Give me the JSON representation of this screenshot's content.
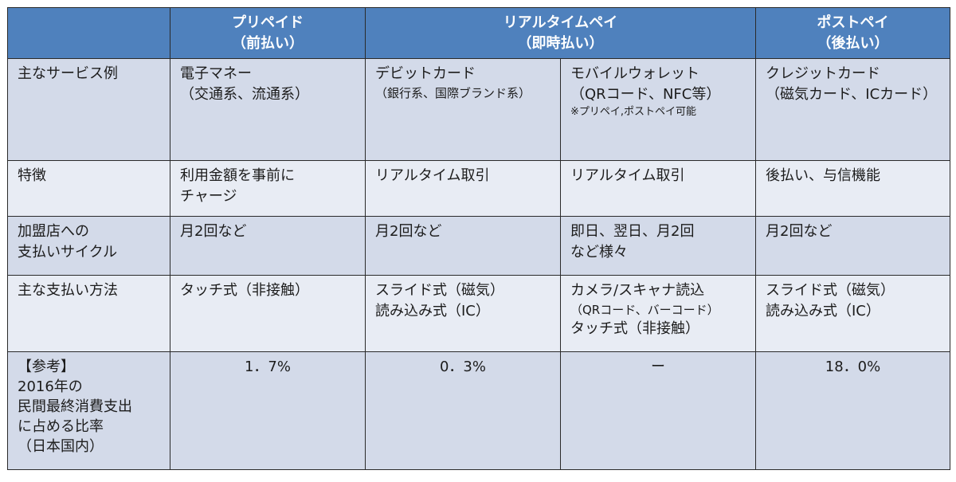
{
  "header": {
    "prepaid": {
      "title": "プリペイド",
      "sub": "（前払い）"
    },
    "realtime": {
      "title": "リアルタイムペイ",
      "sub": "（即時払い）"
    },
    "postpay": {
      "title": "ポストペイ",
      "sub": "（後払い）"
    }
  },
  "rows": {
    "service": {
      "label": "主なサービス例",
      "prepaid": [
        "電子マネー",
        "（交通系、流通系）"
      ],
      "debit": [
        "デビットカード",
        "（銀行系、国際ブランド系）"
      ],
      "mobile": [
        "モバイルウォレット",
        "（QRコード、NFC等）",
        "※プリペイ,ポストペイ可能"
      ],
      "credit": [
        "クレジットカード",
        "（磁気カード、ICカード）"
      ]
    },
    "feature": {
      "label": "特徴",
      "prepaid": [
        "利用金額を事前に",
        "チャージ"
      ],
      "debit": "リアルタイム取引",
      "mobile": "リアルタイム取引",
      "credit": "後払い、与信機能"
    },
    "cycle": {
      "label": [
        "加盟店への",
        "支払いサイクル"
      ],
      "prepaid": "月2回など",
      "debit": "月2回など",
      "mobile": [
        "即日、翌日、月2回",
        "など様々"
      ],
      "credit": "月2回など"
    },
    "method": {
      "label": "主な支払い方法",
      "prepaid": "タッチ式（非接触）",
      "debit": [
        "スライド式（磁気）",
        "読み込み式（IC）"
      ],
      "mobile": [
        "カメラ/スキャナ読込",
        "（QRコード、バーコード）",
        "タッチ式（非接触）"
      ],
      "credit": [
        "スライド式（磁気）",
        "読み込み式（IC）"
      ]
    },
    "ref": {
      "label": [
        "【参考】",
        "2016年の",
        "民間最終消費支出",
        "に占める比率",
        "（日本国内）"
      ],
      "prepaid": "1．7%",
      "debit": "0．3%",
      "mobile": "ー",
      "credit": "18．0%"
    }
  },
  "colors": {
    "header_bg": "#4f81bd",
    "row_shade": "#d3dae9",
    "row_light": "#e8ecf4",
    "header_text": "#ffffff"
  }
}
